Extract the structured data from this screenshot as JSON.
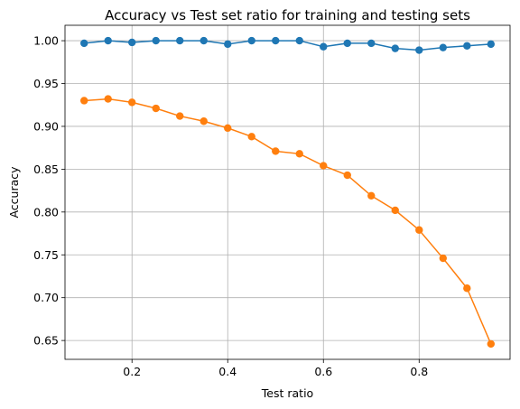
{
  "chart_data": {
    "type": "line",
    "title": "Accuracy vs Test set ratio for training and testing sets",
    "xlabel": "Test ratio",
    "ylabel": "Accuracy",
    "xlim": [
      0.06,
      0.99
    ],
    "ylim": [
      0.628,
      1.018
    ],
    "xticks": [
      "0.2",
      "0.4",
      "0.6",
      "0.8"
    ],
    "yticks": [
      "0.65",
      "0.70",
      "0.75",
      "0.80",
      "0.85",
      "0.90",
      "0.95",
      "1.00"
    ],
    "grid": true,
    "x": [
      0.1,
      0.15,
      0.2,
      0.25,
      0.3,
      0.35,
      0.4,
      0.45,
      0.5,
      0.55,
      0.6,
      0.65,
      0.7,
      0.75,
      0.8,
      0.85,
      0.9,
      0.95
    ],
    "series": [
      {
        "color": "#1f77b4",
        "values": [
          0.997,
          1.0,
          0.998,
          1.0,
          1.0,
          1.0,
          0.996,
          1.0,
          1.0,
          1.0,
          0.993,
          0.997,
          0.997,
          0.991,
          0.989,
          0.992,
          0.994,
          0.996
        ]
      },
      {
        "color": "#ff7f0e",
        "values": [
          0.93,
          0.932,
          0.928,
          0.921,
          0.912,
          0.906,
          0.898,
          0.888,
          0.871,
          0.868,
          0.854,
          0.843,
          0.819,
          0.802,
          0.779,
          0.746,
          0.711,
          0.646
        ]
      }
    ]
  }
}
